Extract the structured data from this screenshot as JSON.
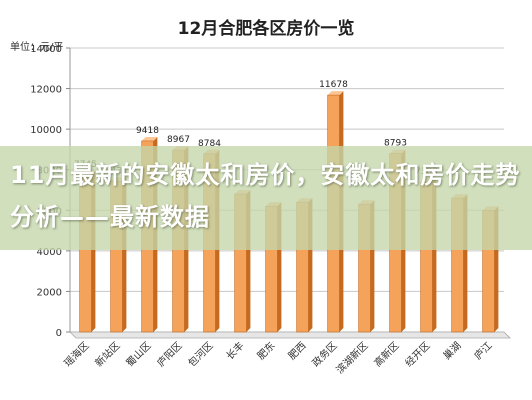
{
  "chart_data": {
    "type": "bar",
    "title": "12月合肥各区房价一览",
    "ylabel": "单位：元/平",
    "categories": [
      "瑶海区",
      "新站区",
      "蜀山区",
      "庐阳区",
      "包河区",
      "长丰",
      "肥东",
      "肥西",
      "政务区",
      "滨湖新区",
      "高新区",
      "经开区",
      "巢湖",
      "庐江"
    ],
    "values": [
      7745,
      7431,
      9418,
      8967,
      8784,
      6800,
      6200,
      6400,
      11678,
      6300,
      8793,
      7383,
      6600,
      6000
    ],
    "data_labels": [
      "7745",
      "7431",
      "9418",
      "8967",
      "8784",
      "",
      "",
      "",
      "11678",
      "",
      "8793",
      "7383",
      "",
      ""
    ],
    "ylim": [
      0,
      14000
    ],
    "yticks": [
      0,
      2000,
      4000,
      6000,
      8000,
      10000,
      12000,
      14000
    ],
    "grid": true,
    "bar_color": "#f5a25a",
    "bar_edge_color": "#c56a1e",
    "grid_color": "#c8c8c8"
  },
  "banner": {
    "text": "11月最新的安徽太和房价，安徽太和房价走势分析——最新数据",
    "background": "#c4d6aa"
  }
}
